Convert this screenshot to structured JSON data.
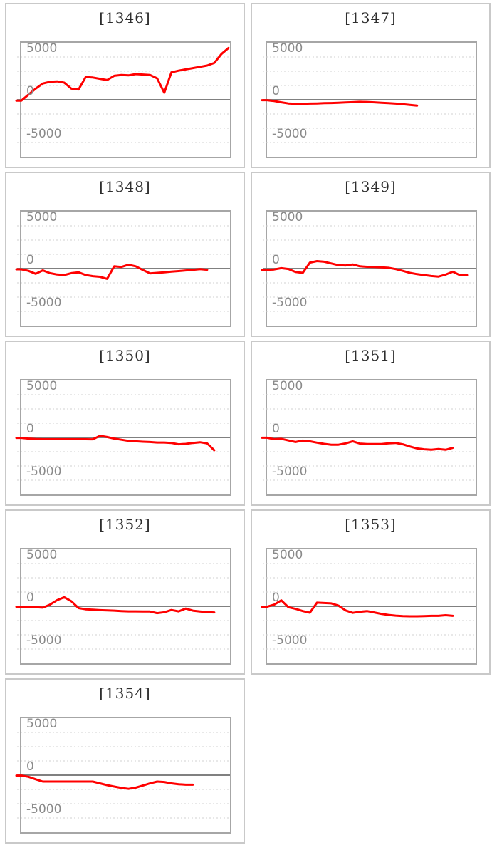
{
  "page": {
    "background": "#ffffff",
    "description_text": ""
  },
  "colors": {
    "line": "#ff0000",
    "zero_line": "#808080",
    "gridline": "#d2d2d2",
    "plot_border": "#a6a6a6",
    "cell_border": "#c9c9c9",
    "tick_label": "#8a8a8a",
    "title": "#2e2e2e",
    "background": "#ffffff"
  },
  "axis": {
    "tick_labels": [
      "5000",
      "0",
      "-5000"
    ],
    "tick_values": [
      5000,
      0,
      -5000
    ],
    "ylim": [
      -6667,
      6667
    ],
    "minor_grid_step": 1667,
    "grid_style": "dashed",
    "max_slots": 30
  },
  "chart_data": [
    {
      "type": "line",
      "title": "[1346]",
      "machine": "1346",
      "y_ticks": [
        5000,
        0,
        -5000
      ],
      "values": [
        -100,
        600,
        1300,
        1900,
        2100,
        2150,
        2000,
        1300,
        1200,
        2650,
        2600,
        2450,
        2300,
        2800,
        2900,
        2850,
        3000,
        2950,
        2900,
        2500,
        820,
        3200,
        3400,
        3550,
        3700,
        3850,
        4000,
        4300,
        5350,
        6060
      ]
    },
    {
      "type": "line",
      "title": "[1347]",
      "machine": "1347",
      "y_ticks": [
        5000,
        0,
        -5000
      ],
      "values": [
        -50,
        -150,
        -300,
        -430,
        -480,
        -480,
        -450,
        -430,
        -400,
        -380,
        -350,
        -320,
        -280,
        -240,
        -260,
        -300,
        -350,
        -400,
        -450,
        -520,
        -600,
        -680
      ]
    },
    {
      "type": "line",
      "title": "[1348]",
      "machine": "1348",
      "y_ticks": [
        5000,
        0,
        -5000
      ],
      "values": [
        -80,
        -270,
        -610,
        -210,
        -530,
        -690,
        -750,
        -530,
        -430,
        -750,
        -880,
        -960,
        -1200,
        270,
        190,
        450,
        270,
        -160,
        -560,
        -500,
        -430,
        -360,
        -290,
        -220,
        -150,
        -60,
        -130
      ]
    },
    {
      "type": "line",
      "title": "[1349]",
      "machine": "1349",
      "y_ticks": [
        5000,
        0,
        -5000
      ],
      "values": [
        -150,
        -100,
        50,
        -50,
        -400,
        -500,
        700,
        875,
        800,
        600,
        400,
        370,
        480,
        265,
        210,
        180,
        140,
        90,
        -60,
        -270,
        -500,
        -650,
        -760,
        -870,
        -930,
        -700,
        -370,
        -770,
        -770
      ]
    },
    {
      "type": "line",
      "title": "[1350]",
      "machine": "1350",
      "y_ticks": [
        5000,
        0,
        -5000
      ],
      "values": [
        -50,
        -130,
        -190,
        -210,
        -210,
        -210,
        -210,
        -210,
        -210,
        -210,
        -220,
        190,
        50,
        -130,
        -270,
        -400,
        -450,
        -500,
        -530,
        -590,
        -590,
        -640,
        -800,
        -750,
        -640,
        -560,
        -690,
        -1500
      ]
    },
    {
      "type": "line",
      "title": "[1351]",
      "machine": "1351",
      "y_ticks": [
        5000,
        0,
        -5000
      ],
      "values": [
        -30,
        -210,
        -160,
        -350,
        -530,
        -370,
        -450,
        -610,
        -750,
        -850,
        -850,
        -690,
        -450,
        -720,
        -770,
        -770,
        -770,
        -690,
        -640,
        -800,
        -1060,
        -1280,
        -1380,
        -1440,
        -1360,
        -1440,
        -1220
      ]
    },
    {
      "type": "line",
      "title": "[1352]",
      "machine": "1352",
      "y_ticks": [
        5000,
        0,
        -5000
      ],
      "values": [
        -50,
        -80,
        -110,
        -160,
        190,
        720,
        1060,
        590,
        -210,
        -350,
        -400,
        -450,
        -480,
        -510,
        -560,
        -590,
        -590,
        -610,
        -610,
        -800,
        -690,
        -430,
        -590,
        -270,
        -510,
        -610,
        -690,
        -720
      ]
    },
    {
      "type": "line",
      "title": "[1353]",
      "machine": "1353",
      "y_ticks": [
        5000,
        0,
        -5000
      ],
      "values": [
        -50,
        190,
        690,
        -110,
        -300,
        -560,
        -750,
        425,
        380,
        345,
        80,
        -480,
        -770,
        -640,
        -560,
        -720,
        -880,
        -1010,
        -1090,
        -1140,
        -1170,
        -1170,
        -1140,
        -1120,
        -1120,
        -1040,
        -1120
      ]
    },
    {
      "type": "line",
      "title": "[1354]",
      "machine": "1354",
      "y_ticks": [
        5000,
        0,
        -5000
      ],
      "values": [
        -50,
        -190,
        -480,
        -750,
        -750,
        -750,
        -750,
        -750,
        -750,
        -750,
        -750,
        -960,
        -1170,
        -1330,
        -1490,
        -1600,
        -1460,
        -1220,
        -960,
        -750,
        -800,
        -960,
        -1060,
        -1120,
        -1120
      ]
    }
  ]
}
